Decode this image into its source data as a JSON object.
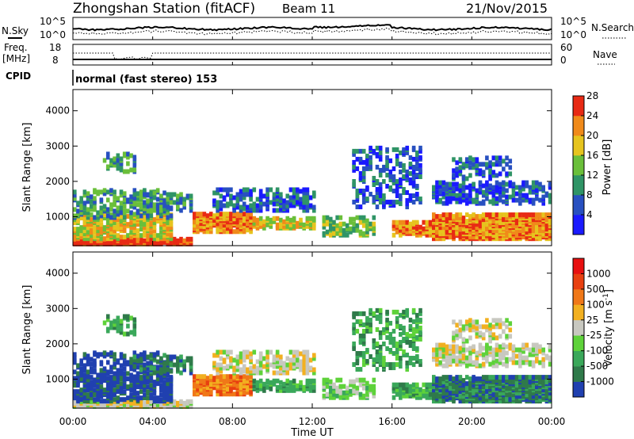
{
  "header": {
    "title": "Zhongshan Station (fitACF)",
    "beam": "Beam 11",
    "date": "21/Nov/2015"
  },
  "status_panels": {
    "nsky_label": "N.Sky",
    "nsearch_label": "N.Search",
    "freq_label_line1": "Freq.",
    "freq_label_line2": "[MHz]",
    "nave_label": "Nave",
    "cpid_label": "CPID",
    "cpid_text": "normal (fast stereo) 153",
    "noise_ticks_left": [
      "10^5",
      "10^0"
    ],
    "noise_ticks_right": [
      "10^5",
      "10^0"
    ],
    "freq_ticks_left": [
      "18",
      "8"
    ],
    "nave_ticks_right": [
      "60",
      "0"
    ]
  },
  "chart_data": [
    {
      "type": "heatmap",
      "panel": "power",
      "ylabel": "Slant Range [km]",
      "ylim": [
        180,
        4600
      ],
      "yticks": [
        1000,
        2000,
        3000,
        4000
      ],
      "xlim": [
        0,
        24
      ],
      "colorbar": {
        "label": "Power [dB]",
        "range": [
          0,
          30
        ],
        "ticks": [
          "4",
          "8",
          "12",
          "16",
          "20",
          "24",
          "28"
        ],
        "colors": [
          "#1a1aff",
          "#2850c0",
          "#2f9466",
          "#6abf3a",
          "#e6c41e",
          "#f08a1a",
          "#e82a14"
        ]
      }
    },
    {
      "type": "heatmap",
      "panel": "velocity",
      "ylabel": "Slant Range [km]",
      "ylim": [
        180,
        4600
      ],
      "yticks": [
        1000,
        2000,
        3000,
        4000
      ],
      "xlim": [
        0,
        24
      ],
      "xticks": [
        "00:00",
        "04:00",
        "08:00",
        "12:00",
        "16:00",
        "20:00",
        "00:00"
      ],
      "xlabel": "Time UT",
      "colorbar": {
        "label": "Velocity [m s",
        "label_sup": "-1",
        "label_end": "]",
        "ticks": [
          "1000",
          "500",
          "100",
          "25",
          "-25",
          "-100",
          "-500",
          "-1000"
        ],
        "colors": [
          "#2040b0",
          "#2f7a4a",
          "#3aa85a",
          "#5ed23a",
          "#c8c8c0",
          "#f2b020",
          "#f07818",
          "#e84010",
          "#e81010"
        ]
      }
    }
  ]
}
